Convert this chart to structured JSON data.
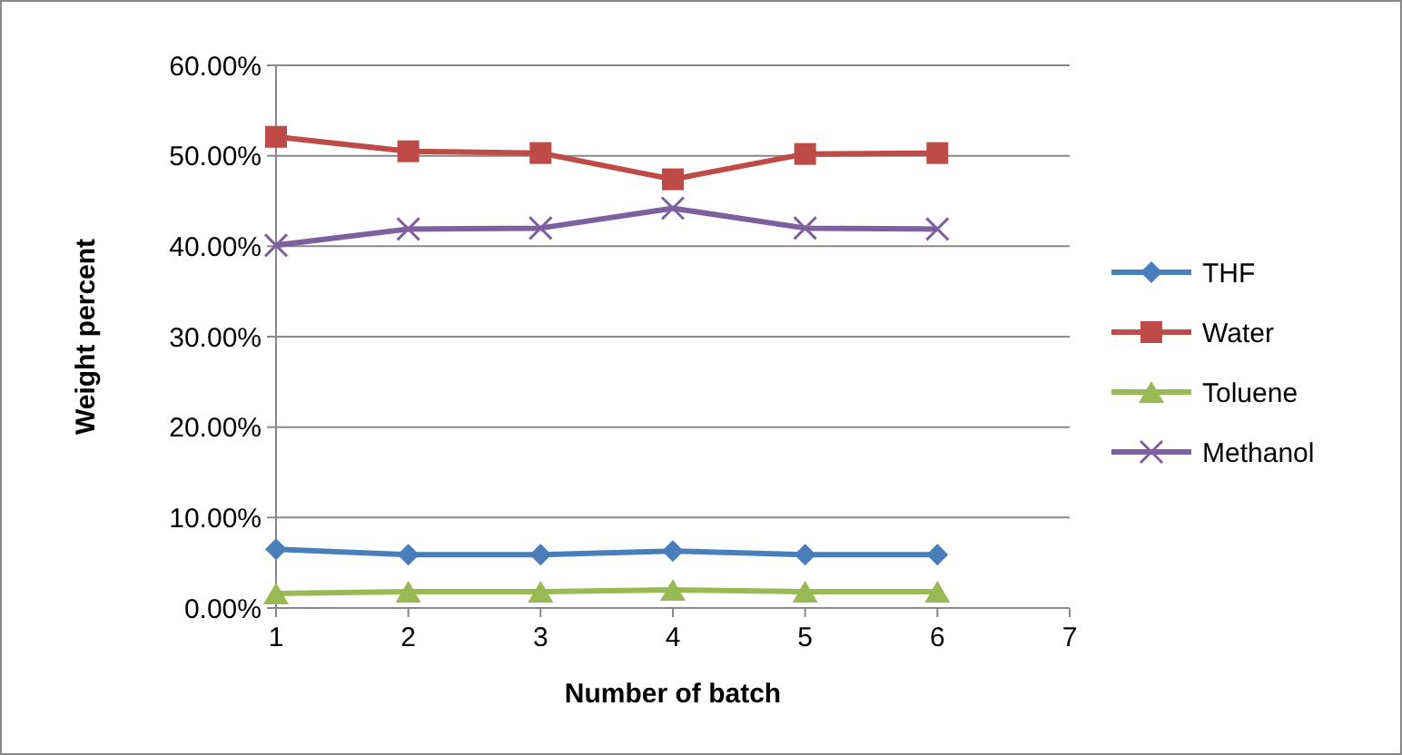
{
  "chart_data": {
    "type": "line",
    "xlabel": "Number of batch",
    "ylabel": "Weight percent",
    "x": [
      1,
      2,
      3,
      4,
      5,
      6
    ],
    "xlim": [
      1,
      7
    ],
    "xticks": [
      1,
      2,
      3,
      4,
      5,
      6,
      7
    ],
    "ylim": [
      0,
      60
    ],
    "yticks": [
      {
        "value": 0,
        "label": "0.00%"
      },
      {
        "value": 10,
        "label": "10.00%"
      },
      {
        "value": 20,
        "label": "20.00%"
      },
      {
        "value": 30,
        "label": "30.00%"
      },
      {
        "value": 40,
        "label": "40.00%"
      },
      {
        "value": 50,
        "label": "50.00%"
      },
      {
        "value": 60,
        "label": "60.00%"
      }
    ],
    "grid": "y",
    "legend": "right",
    "series": [
      {
        "name": "THF",
        "color": "#4a7ebb",
        "marker": "diamond",
        "values": [
          6.5,
          5.9,
          5.9,
          6.3,
          5.9,
          5.9
        ]
      },
      {
        "name": "Water",
        "color": "#be4b48",
        "marker": "square",
        "values": [
          52.1,
          50.5,
          50.3,
          47.4,
          50.2,
          50.3
        ]
      },
      {
        "name": "Toluene",
        "color": "#98b954",
        "marker": "triangle",
        "values": [
          1.6,
          1.8,
          1.8,
          2.0,
          1.8,
          1.8
        ]
      },
      {
        "name": "Methanol",
        "color": "#7d60a0",
        "marker": "cross",
        "values": [
          40.1,
          41.9,
          42.0,
          44.2,
          42.0,
          41.9
        ]
      }
    ]
  }
}
